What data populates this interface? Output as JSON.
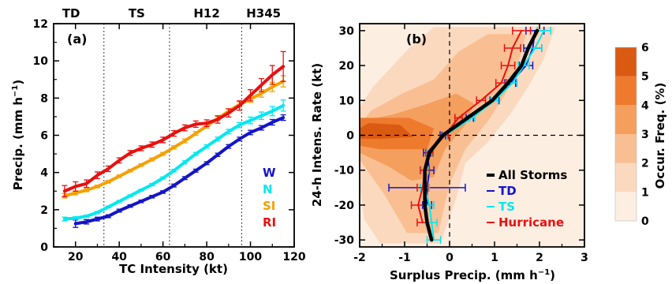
{
  "chart_data": [
    {
      "type": "line",
      "panel_label": "(a)",
      "xlabel": "TC Intensity (kt)",
      "ylabel_main": "Precip. (mm h",
      "ylabel_sup": "−1",
      "ylabel_end": ")",
      "xlim": [
        10,
        120
      ],
      "ylim": [
        0,
        12
      ],
      "xticks": [
        20,
        40,
        60,
        80,
        100,
        120
      ],
      "yticks": [
        0,
        2,
        4,
        6,
        8,
        10,
        12
      ],
      "intensity_categories": [
        {
          "label": "TD",
          "x": 18
        },
        {
          "label": "TS",
          "x": 48
        },
        {
          "label": "H12",
          "x": 80
        },
        {
          "label": "H345",
          "x": 106
        }
      ],
      "category_boundaries": [
        33,
        63,
        96
      ],
      "legend": [
        {
          "label": "W",
          "color": "#1414c8"
        },
        {
          "label": "N",
          "color": "#00e8f0"
        },
        {
          "label": "SI",
          "color": "#f5a000"
        },
        {
          "label": "RI",
          "color": "#e81010"
        }
      ],
      "series": [
        {
          "name": "W",
          "color": "#1414c8",
          "x": [
            20,
            25,
            30,
            35,
            40,
            45,
            50,
            55,
            60,
            65,
            70,
            75,
            80,
            85,
            90,
            95,
            100,
            105,
            110,
            115
          ],
          "y": [
            1.25,
            1.35,
            1.5,
            1.65,
            1.95,
            2.2,
            2.45,
            2.7,
            2.95,
            3.3,
            3.7,
            4.1,
            4.5,
            4.95,
            5.4,
            5.8,
            6.15,
            6.4,
            6.7,
            6.95
          ],
          "err": [
            0.2,
            0.12,
            0.1,
            0.08,
            0.08,
            0.07,
            0.07,
            0.07,
            0.07,
            0.08,
            0.08,
            0.08,
            0.08,
            0.09,
            0.1,
            0.1,
            0.12,
            0.12,
            0.15,
            0.15
          ]
        },
        {
          "name": "N",
          "color": "#00e8f0",
          "x": [
            15,
            20,
            25,
            30,
            35,
            40,
            45,
            50,
            55,
            60,
            65,
            70,
            75,
            80,
            85,
            90,
            95,
            100,
            105,
            110,
            115
          ],
          "y": [
            1.5,
            1.55,
            1.65,
            1.85,
            2.15,
            2.45,
            2.75,
            3.05,
            3.35,
            3.7,
            4.1,
            4.55,
            5.0,
            5.4,
            5.8,
            6.2,
            6.55,
            6.8,
            7.05,
            7.3,
            7.6
          ],
          "err": [
            0.1,
            0.07,
            0.06,
            0.06,
            0.05,
            0.05,
            0.05,
            0.05,
            0.06,
            0.06,
            0.07,
            0.08,
            0.08,
            0.09,
            0.1,
            0.12,
            0.14,
            0.18,
            0.2,
            0.25,
            0.3
          ]
        },
        {
          "name": "SI",
          "color": "#f5a000",
          "x": [
            15,
            20,
            25,
            30,
            35,
            40,
            45,
            50,
            55,
            60,
            65,
            70,
            75,
            80,
            85,
            90,
            95,
            100,
            105,
            110,
            115
          ],
          "y": [
            2.75,
            2.9,
            3.05,
            3.25,
            3.5,
            3.8,
            4.1,
            4.4,
            4.7,
            5.0,
            5.35,
            5.7,
            6.1,
            6.5,
            6.9,
            7.3,
            7.65,
            7.95,
            8.25,
            8.6,
            8.9
          ],
          "err": [
            0.12,
            0.1,
            0.08,
            0.07,
            0.07,
            0.07,
            0.07,
            0.07,
            0.08,
            0.08,
            0.09,
            0.1,
            0.1,
            0.11,
            0.12,
            0.13,
            0.15,
            0.18,
            0.2,
            0.25,
            0.3
          ]
        },
        {
          "name": "RI",
          "color": "#e81010",
          "x": [
            15,
            20,
            25,
            30,
            35,
            40,
            45,
            50,
            55,
            60,
            65,
            70,
            75,
            80,
            85,
            90,
            95,
            100,
            105,
            110,
            115
          ],
          "y": [
            3.0,
            3.25,
            3.4,
            3.85,
            4.2,
            4.65,
            5.05,
            5.3,
            5.5,
            5.75,
            6.1,
            6.4,
            6.6,
            6.65,
            6.85,
            7.2,
            7.6,
            8.15,
            8.7,
            9.25,
            9.7
          ],
          "err": [
            0.3,
            0.25,
            0.2,
            0.18,
            0.15,
            0.14,
            0.13,
            0.13,
            0.14,
            0.15,
            0.15,
            0.16,
            0.17,
            0.18,
            0.2,
            0.22,
            0.25,
            0.3,
            0.35,
            0.5,
            0.8
          ]
        }
      ]
    },
    {
      "type": "line",
      "panel_label": "(b)",
      "xlabel_main": "Surplus Precip. (mm h",
      "xlabel_sup": "−1",
      "xlabel_end": ")",
      "ylabel": "24-h Intens. Rate (kt)",
      "xlim": [
        -2,
        3
      ],
      "ylim": [
        -32,
        32
      ],
      "xticks": [
        -2,
        -1,
        0,
        1,
        2,
        3
      ],
      "yticks": [
        -30,
        -20,
        -10,
        0,
        10,
        20,
        30
      ],
      "background_contours": "occurrence frequency (%)",
      "legend": [
        {
          "label": "All Storms",
          "color": "#000000"
        },
        {
          "label": "TD",
          "color": "#1414c8"
        },
        {
          "label": "TS",
          "color": "#00e8f0"
        },
        {
          "label": "Hurricane",
          "color": "#e81010"
        }
      ],
      "series": [
        {
          "name": "All Storms",
          "color": "#000000",
          "y": [
            -30,
            -25,
            -20,
            -15,
            -10,
            -5,
            0,
            5,
            10,
            15,
            20,
            25,
            30
          ],
          "x": [
            -0.4,
            -0.5,
            -0.55,
            -0.55,
            -0.55,
            -0.45,
            -0.15,
            0.4,
            0.95,
            1.3,
            1.6,
            1.75,
            1.95
          ],
          "err": [
            0,
            0,
            0,
            0,
            0,
            0,
            0,
            0,
            0,
            0,
            0,
            0,
            0
          ]
        },
        {
          "name": "TD",
          "color": "#1414c8",
          "y": [
            -20,
            -15,
            -10,
            -5,
            0,
            5,
            10,
            15,
            20,
            25,
            30
          ],
          "x": [
            -0.5,
            -0.5,
            -0.45,
            -0.5,
            -0.15,
            0.45,
            1.0,
            1.35,
            1.7,
            1.85,
            1.9
          ],
          "err": [
            0.1,
            0.85,
            0.1,
            0.08,
            0.06,
            0.08,
            0.1,
            0.12,
            0.15,
            0.2,
            0.2
          ]
        },
        {
          "name": "TS",
          "color": "#00e8f0",
          "y": [
            -30,
            -25,
            -20,
            -15,
            -10,
            -5,
            0,
            5,
            10,
            15,
            20,
            25,
            30
          ],
          "x": [
            -0.35,
            -0.4,
            -0.45,
            -0.55,
            -0.55,
            -0.45,
            -0.1,
            0.5,
            1.0,
            1.4,
            1.65,
            1.9,
            2.1
          ],
          "err": [
            0.15,
            0.12,
            0.1,
            0.1,
            0.08,
            0.06,
            0.05,
            0.06,
            0.08,
            0.1,
            0.12,
            0.15,
            0.15
          ]
        },
        {
          "name": "Hurricane",
          "color": "#e81010",
          "y": [
            -25,
            -20,
            -15,
            -10,
            -5,
            0,
            5,
            10,
            15,
            20,
            25,
            30
          ],
          "x": [
            -0.6,
            -0.7,
            -0.6,
            -0.55,
            -0.45,
            -0.1,
            0.2,
            0.7,
            1.15,
            1.3,
            1.4,
            1.6
          ],
          "err": [
            0.12,
            0.15,
            0.12,
            0.1,
            0.08,
            0.07,
            0.08,
            0.1,
            0.12,
            0.15,
            0.18,
            0.2
          ]
        }
      ]
    },
    {
      "type": "heatmap",
      "role": "colorbar",
      "label": "Occur. Freq. (%)",
      "levels": [
        0,
        1,
        2,
        3,
        4,
        5,
        6
      ],
      "colors": [
        "#fdeee2",
        "#fbd9bf",
        "#f9bf93",
        "#f59f5e",
        "#ee7a2e",
        "#db5a12"
      ]
    }
  ]
}
